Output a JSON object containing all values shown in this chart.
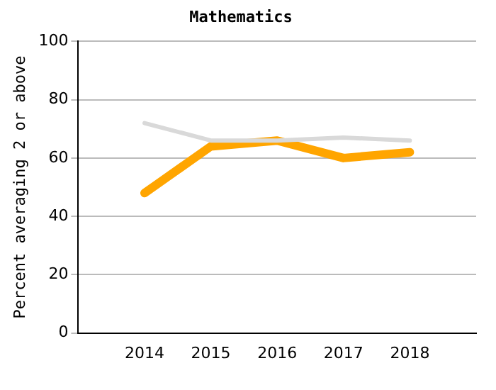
{
  "chart_data": {
    "type": "line",
    "title": "Mathematics",
    "ylabel": "Percent averaging 2 or above",
    "x": [
      2014,
      2015,
      2016,
      2017,
      2018
    ],
    "xlim": [
      2013,
      2019
    ],
    "xticks": [
      2014,
      2015,
      2016,
      2017,
      2018
    ],
    "ylim": [
      0,
      100
    ],
    "yticks": [
      0,
      20,
      40,
      60,
      80,
      100
    ],
    "grid": "y",
    "legend": false,
    "series": [
      {
        "color": "#d9d9d9",
        "values": [
          72,
          66,
          66,
          67,
          66
        ]
      },
      {
        "color": "#ffa500",
        "values": [
          48,
          64,
          66,
          60,
          62
        ]
      }
    ]
  }
}
